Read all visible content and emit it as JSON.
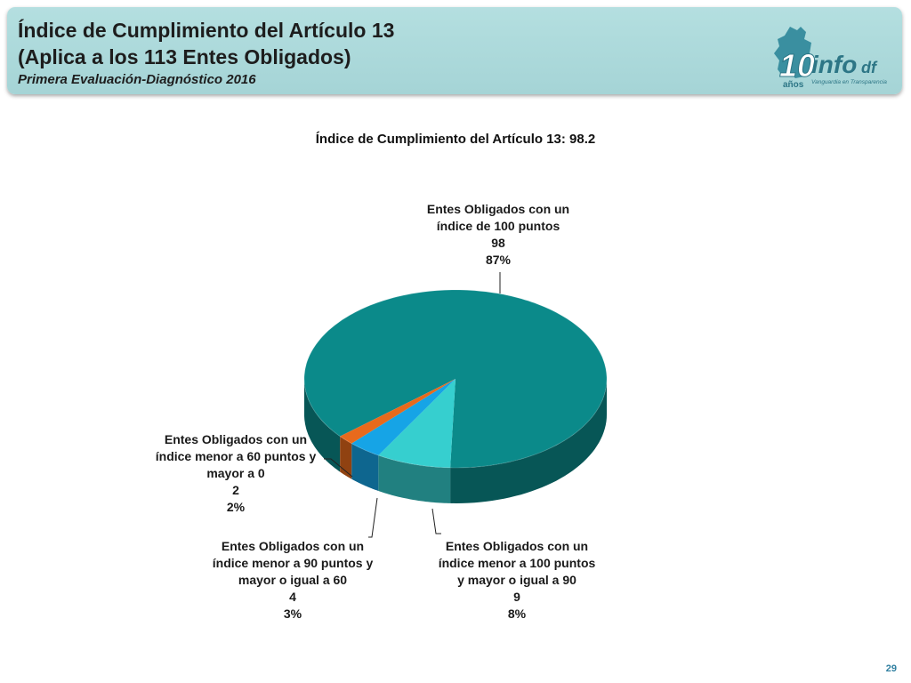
{
  "header": {
    "title_line1": "Índice de Cumplimiento del Artículo 13",
    "title_line2": "(Aplica a los 113 Entes Obligados)",
    "subtitle": "Primera Evaluación-Diagnóstico 2016"
  },
  "logo": {
    "number": "10",
    "years": "años",
    "brand_info": "info",
    "brand_df": "df",
    "tagline": "Vanguardia en Transparencia",
    "colors": {
      "map": "#3a8fa0",
      "text": "#2d7686"
    }
  },
  "chart_data": {
    "type": "pie",
    "title": "Índice de Cumplimiento del Artículo 13: 98.2",
    "slices": [
      {
        "label_lines": [
          "Entes Obligados con un",
          "índice de 100 puntos"
        ],
        "value": 98,
        "percent": "87%",
        "color": "#0b8a8a"
      },
      {
        "label_lines": [
          "Entes Obligados con un",
          "índice  menor a 100 puntos",
          "y mayor o igual a 90"
        ],
        "value": 9,
        "percent": "8%",
        "color": "#36cfcf"
      },
      {
        "label_lines": [
          "Entes Obligados con un",
          "índice menor a 90 puntos y",
          "mayor o igual a 60"
        ],
        "value": 4,
        "percent": "3%",
        "color": "#16a4e6"
      },
      {
        "label_lines": [
          "Entes Obligados con un",
          "índice menor a 60 puntos y",
          "mayor a 0"
        ],
        "value": 2,
        "percent": "2%",
        "color": "#e86a1c"
      }
    ],
    "style": "3d-pie"
  },
  "page_number": "29"
}
